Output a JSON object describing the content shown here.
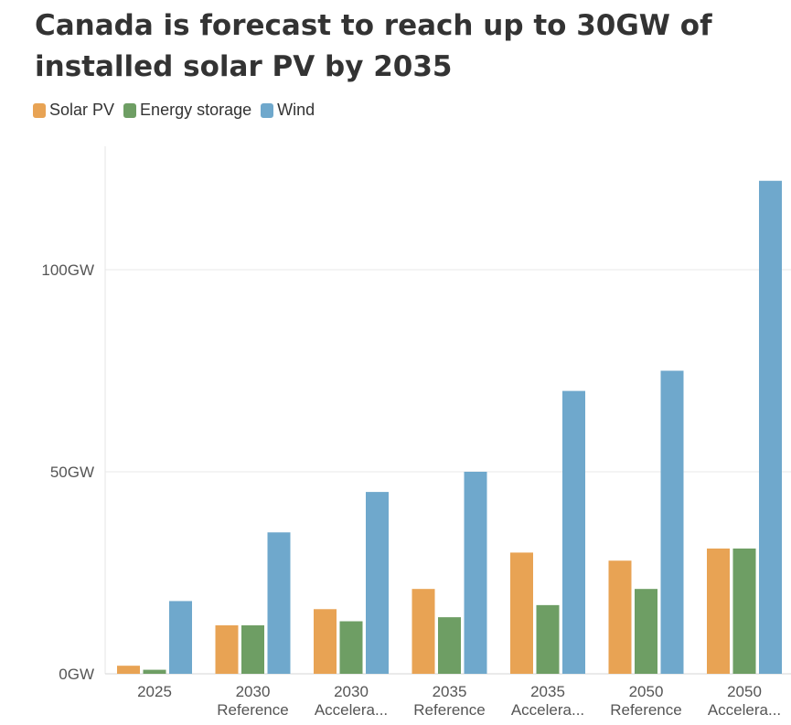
{
  "chart_data": {
    "type": "bar",
    "title": "Canada is forecast to reach up to 30GW of installed solar PV by 2035",
    "categories": [
      [
        "2025"
      ],
      [
        "2030",
        "Reference"
      ],
      [
        "2030",
        "Accelera..."
      ],
      [
        "2035",
        "Reference"
      ],
      [
        "2035",
        "Accelera..."
      ],
      [
        "2050",
        "Reference"
      ],
      [
        "2050",
        "Accelera..."
      ]
    ],
    "series": [
      {
        "name": "Solar PV",
        "color": "#E8A354",
        "values": [
          2,
          12,
          16,
          21,
          30,
          28,
          31
        ]
      },
      {
        "name": "Energy storage",
        "color": "#6E9E64",
        "values": [
          1,
          12,
          13,
          14,
          17,
          21,
          31
        ]
      },
      {
        "name": "Wind",
        "color": "#6FA8CC",
        "values": [
          18,
          35,
          45,
          50,
          70,
          75,
          122
        ]
      }
    ],
    "yticks": [
      {
        "value": 0,
        "label": "0GW"
      },
      {
        "value": 50,
        "label": "50GW"
      },
      {
        "value": 100,
        "label": "100GW"
      }
    ],
    "ylim": [
      0,
      130
    ],
    "xlabel": "",
    "ylabel": "",
    "legend_position": "top-left",
    "grid": true
  }
}
